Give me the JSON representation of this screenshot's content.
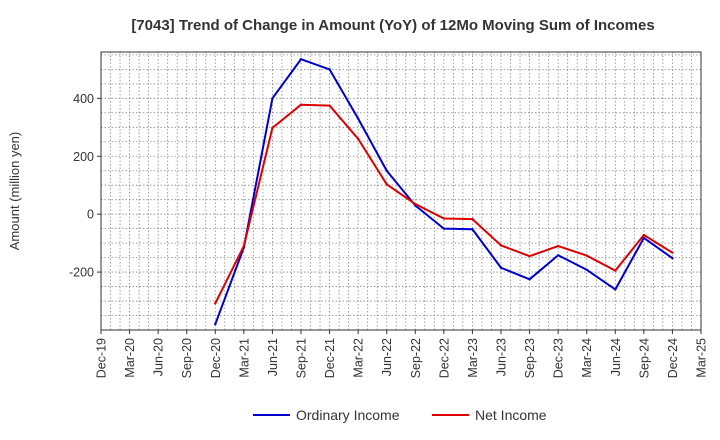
{
  "chart_data": {
    "type": "line",
    "title": "[7043]  Trend of Change in Amount (YoY) of 12Mo Moving Sum of Incomes",
    "xlabel": "",
    "ylabel": "Amount (million yen)",
    "ylim": [
      -400,
      560
    ],
    "yticks": [
      400,
      200,
      0,
      -200
    ],
    "ytick_labels": [
      "400",
      "200",
      "0",
      "-200"
    ],
    "x_tick_labels": [
      "Dec-19",
      "Mar-20",
      "Jun-20",
      "Sep-20",
      "Dec-20",
      "Mar-21",
      "Jun-21",
      "Sep-21",
      "Dec-21",
      "Mar-22",
      "Jun-22",
      "Sep-22",
      "Dec-22",
      "Mar-23",
      "Jun-23",
      "Sep-23",
      "Dec-23",
      "Mar-24",
      "Jun-24",
      "Sep-24",
      "Dec-24",
      "Mar-25"
    ],
    "grid": true,
    "legend_position": "bottom-center",
    "series": [
      {
        "name": "Ordinary Income",
        "color": "#0000cc",
        "values": [
          null,
          null,
          null,
          null,
          -380,
          -115,
          400,
          535,
          500,
          330,
          150,
          30,
          -50,
          -52,
          -185,
          -225,
          -142,
          -192,
          -260,
          -82,
          -152,
          null
        ]
      },
      {
        "name": "Net Income",
        "color": "#dd0000",
        "values": [
          null,
          null,
          null,
          null,
          -308,
          -110,
          298,
          378,
          375,
          260,
          103,
          35,
          -15,
          -17,
          -108,
          -145,
          -110,
          -143,
          -195,
          -72,
          -133,
          null
        ]
      }
    ]
  }
}
